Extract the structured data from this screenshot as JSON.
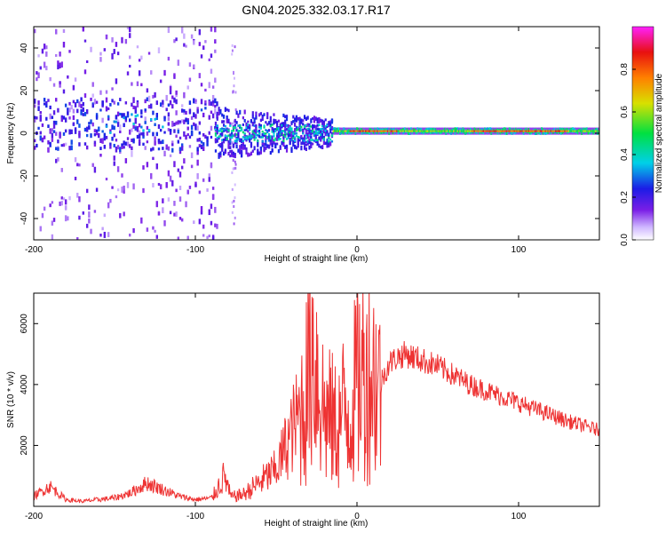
{
  "title": "GN04.2025.332.03.17.R17",
  "colors": {
    "snr_line": "#ee3333",
    "colormap": [
      "#ffffff",
      "#cfb6ff",
      "#7a1ee6",
      "#1c1ce6",
      "#00d0e8",
      "#00e040",
      "#d8e000",
      "#ff8000",
      "#e81010",
      "#ff20ff"
    ]
  },
  "chart_data": [
    {
      "type": "heatmap",
      "xlabel": "Height of straight line (km)",
      "ylabel": "Frequency (Hz)",
      "xlim": [
        -200,
        150
      ],
      "ylim": [
        -50,
        50
      ],
      "xticks": [
        -200,
        -100,
        0,
        100
      ],
      "yticks": [
        -40,
        -20,
        0,
        20,
        40
      ],
      "grid": false,
      "colorbar": {
        "label": "Normalized spectral amplitude",
        "range": [
          0.0,
          1.0
        ],
        "ticks": [
          0.0,
          0.2,
          0.4,
          0.6,
          0.8
        ]
      },
      "features": [
        {
          "x_range": [
            -200,
            -87
          ],
          "description": "scattered low-amplitude noise across all frequencies"
        },
        {
          "x_range": [
            -88,
            -15
          ],
          "description": "moderate amplitude band near 0 Hz, broad spread"
        },
        {
          "x_range": [
            -15,
            150
          ],
          "description": "narrow high-amplitude band at about 1 Hz"
        }
      ]
    },
    {
      "type": "line",
      "xlabel": "Height of straight line (km)",
      "ylabel": "SNR (10 * v/v)",
      "xlim": [
        -200,
        150
      ],
      "ylim": [
        0,
        7000
      ],
      "xticks": [
        -200,
        -100,
        0,
        100
      ],
      "yticks": [
        2000,
        4000,
        6000
      ],
      "grid": false,
      "series": [
        {
          "x": [
            -200,
            -190,
            -180,
            -170,
            -160,
            -150,
            -140,
            -130,
            -120,
            -110,
            -100,
            -90,
            -82,
            -78,
            -70,
            -60,
            -50,
            -40,
            -32,
            -28,
            -20,
            -12,
            -8,
            -4,
            0,
            5,
            10,
            14,
            20,
            25,
            30,
            40,
            50,
            60,
            70,
            80,
            90,
            100,
            110,
            120,
            130,
            140,
            150
          ],
          "values": [
            300,
            600,
            200,
            150,
            200,
            250,
            400,
            700,
            500,
            300,
            200,
            250,
            1000,
            300,
            400,
            800,
            1200,
            2500,
            3500,
            5500,
            3000,
            2600,
            3200,
            3000,
            4200,
            4400,
            4300,
            4000,
            4700,
            4900,
            5000,
            4800,
            4600,
            4300,
            4000,
            3800,
            3600,
            3400,
            3200,
            3000,
            2800,
            2650,
            2500
          ]
        }
      ]
    }
  ]
}
